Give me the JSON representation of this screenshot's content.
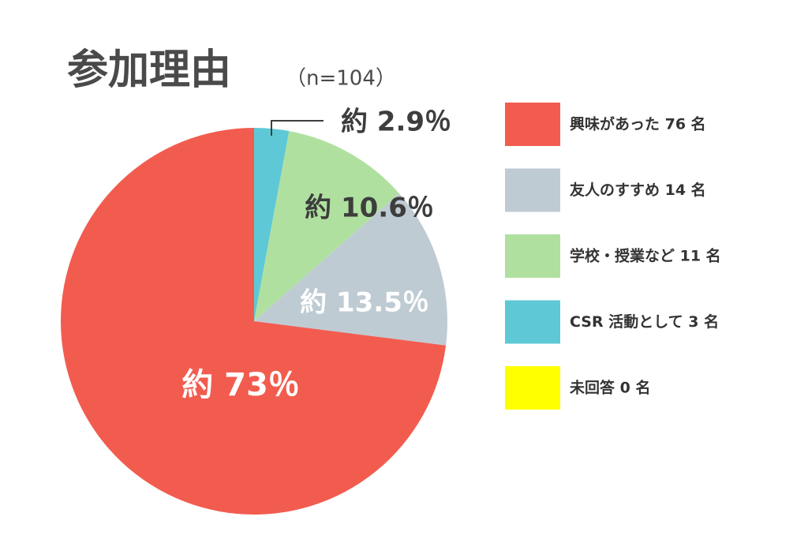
{
  "chart_data": {
    "type": "pie",
    "title": "参加理由",
    "subtitle": "（n=104）",
    "categories": [
      "興味があった 76 名",
      "友人のすすめ 14 名",
      "学校・授業など 11 名",
      "CSR 活動として 3 名",
      "未回答 0 名"
    ],
    "values": [
      73,
      13.5,
      10.6,
      2.9,
      0
    ],
    "value_labels": [
      "約 73％",
      "約 13.5％",
      "約 10.6％",
      "約 2.9％",
      null
    ],
    "colors": [
      "#f25c4f",
      "#bfcbd3",
      "#b0e0a0",
      "#5ec8d6",
      "#ffff00"
    ],
    "legend": "right"
  }
}
